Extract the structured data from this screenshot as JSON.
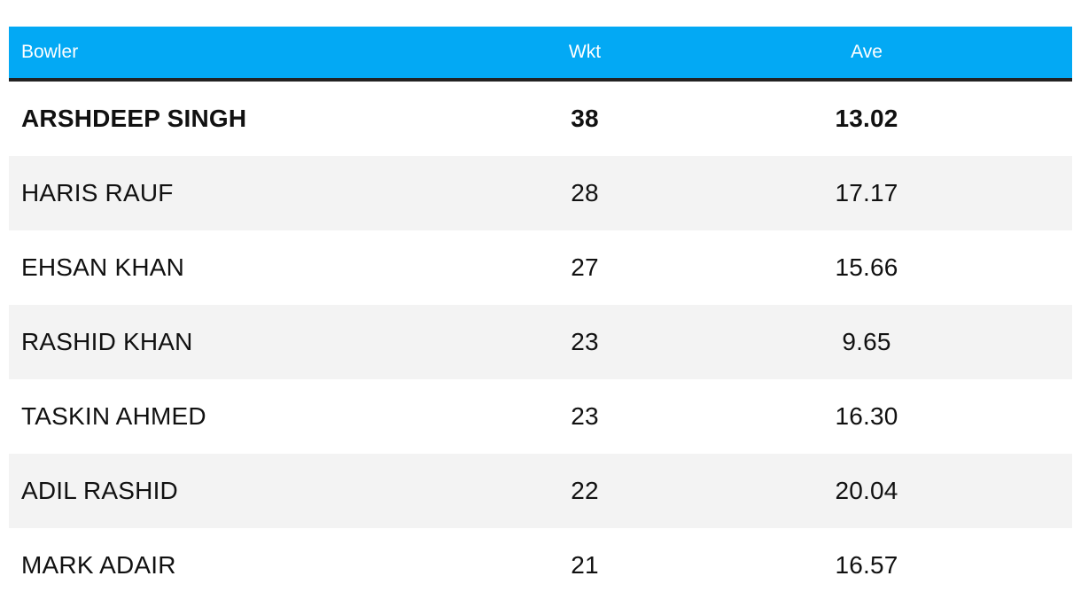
{
  "chart_data": {
    "type": "table",
    "columns": [
      "Bowler",
      "Wkt",
      "Ave"
    ],
    "rows": [
      {
        "bowler": "ARSHDEEP SINGH",
        "wkt": "38",
        "ave": "13.02"
      },
      {
        "bowler": "HARIS RAUF",
        "wkt": "28",
        "ave": "17.17"
      },
      {
        "bowler": "EHSAN KHAN",
        "wkt": "27",
        "ave": "15.66"
      },
      {
        "bowler": "RASHID KHAN",
        "wkt": "23",
        "ave": "9.65"
      },
      {
        "bowler": "TASKIN AHMED",
        "wkt": "23",
        "ave": "16.30"
      },
      {
        "bowler": "ADIL RASHID",
        "wkt": "22",
        "ave": "20.04"
      },
      {
        "bowler": "MARK ADAIR",
        "wkt": "21",
        "ave": "16.57"
      }
    ]
  },
  "colors": {
    "header_bg": "#03a9f4",
    "header_border": "#222222",
    "alt_row_bg": "#f3f3f3"
  }
}
